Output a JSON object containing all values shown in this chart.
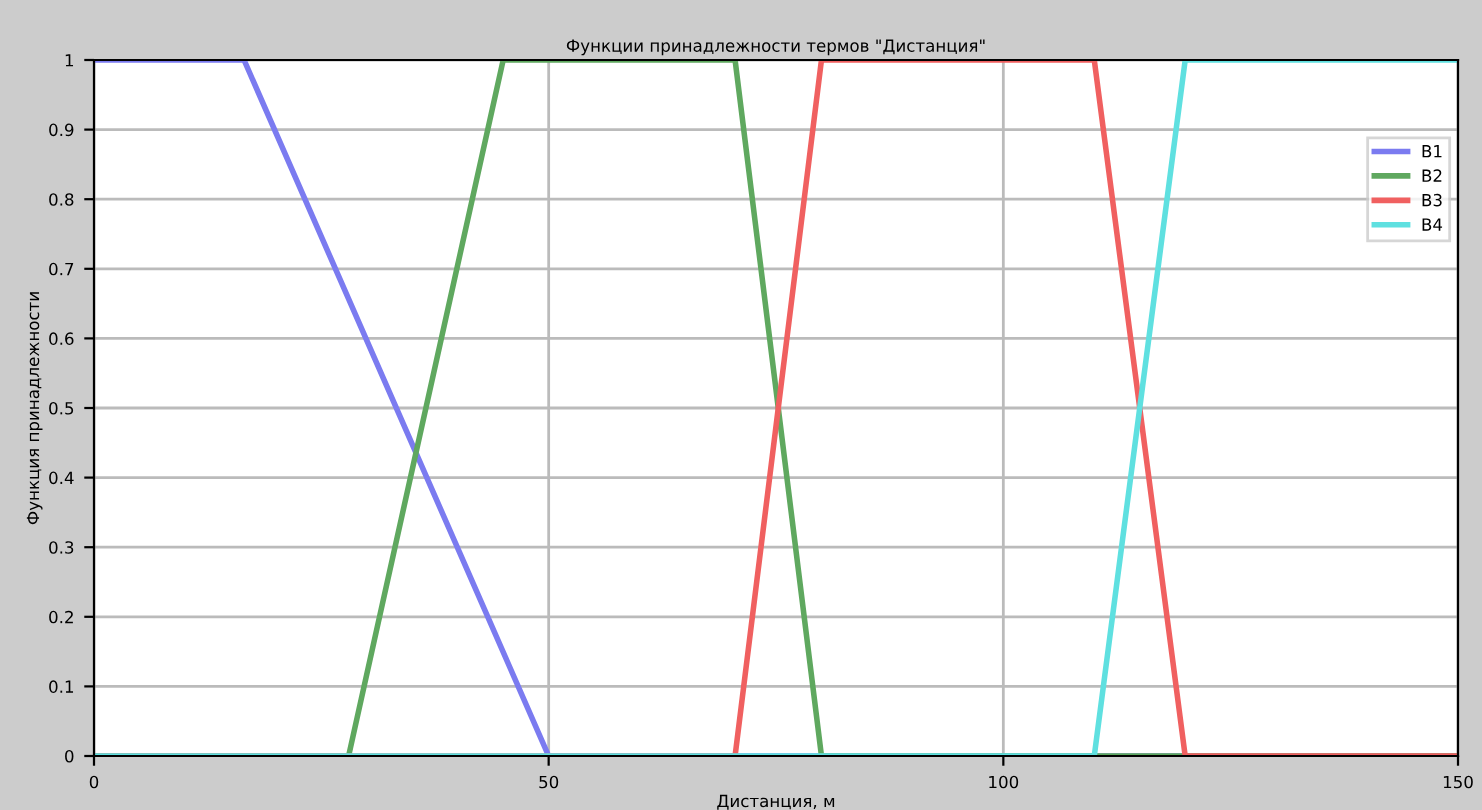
{
  "chart_data": {
    "type": "line",
    "title": "Функции принадлежности термов \"Дистанция\"",
    "xlabel": "Дистанция, м",
    "ylabel": "Функция принадлежности",
    "series": [
      {
        "name": "В1",
        "color": "#7b7bf0",
        "x": [
          0,
          16.5,
          50,
          150
        ],
        "values": [
          1,
          1,
          0,
          0
        ]
      },
      {
        "name": "В2",
        "color": "#5fa85f",
        "x": [
          0,
          28,
          45,
          70.5,
          80,
          150
        ],
        "values": [
          0,
          0,
          1,
          1,
          0,
          0
        ]
      },
      {
        "name": "В3",
        "color": "#f06060",
        "x": [
          0,
          70.5,
          80,
          110,
          120,
          150
        ],
        "values": [
          0,
          0,
          1,
          1,
          0,
          0
        ]
      },
      {
        "name": "В4",
        "color": "#5fe0e0",
        "x": [
          0,
          110,
          120,
          150
        ],
        "values": [
          0,
          0,
          1,
          1
        ]
      }
    ],
    "xlim": [
      0,
      150
    ],
    "xticks": [
      0,
      50,
      100,
      150
    ],
    "ylim": [
      0,
      1
    ],
    "yticks": [
      0,
      0.1,
      0.2,
      0.3,
      0.4,
      0.5,
      0.6,
      0.7,
      0.8,
      0.9,
      1
    ],
    "grid": true,
    "legend": "top right"
  }
}
